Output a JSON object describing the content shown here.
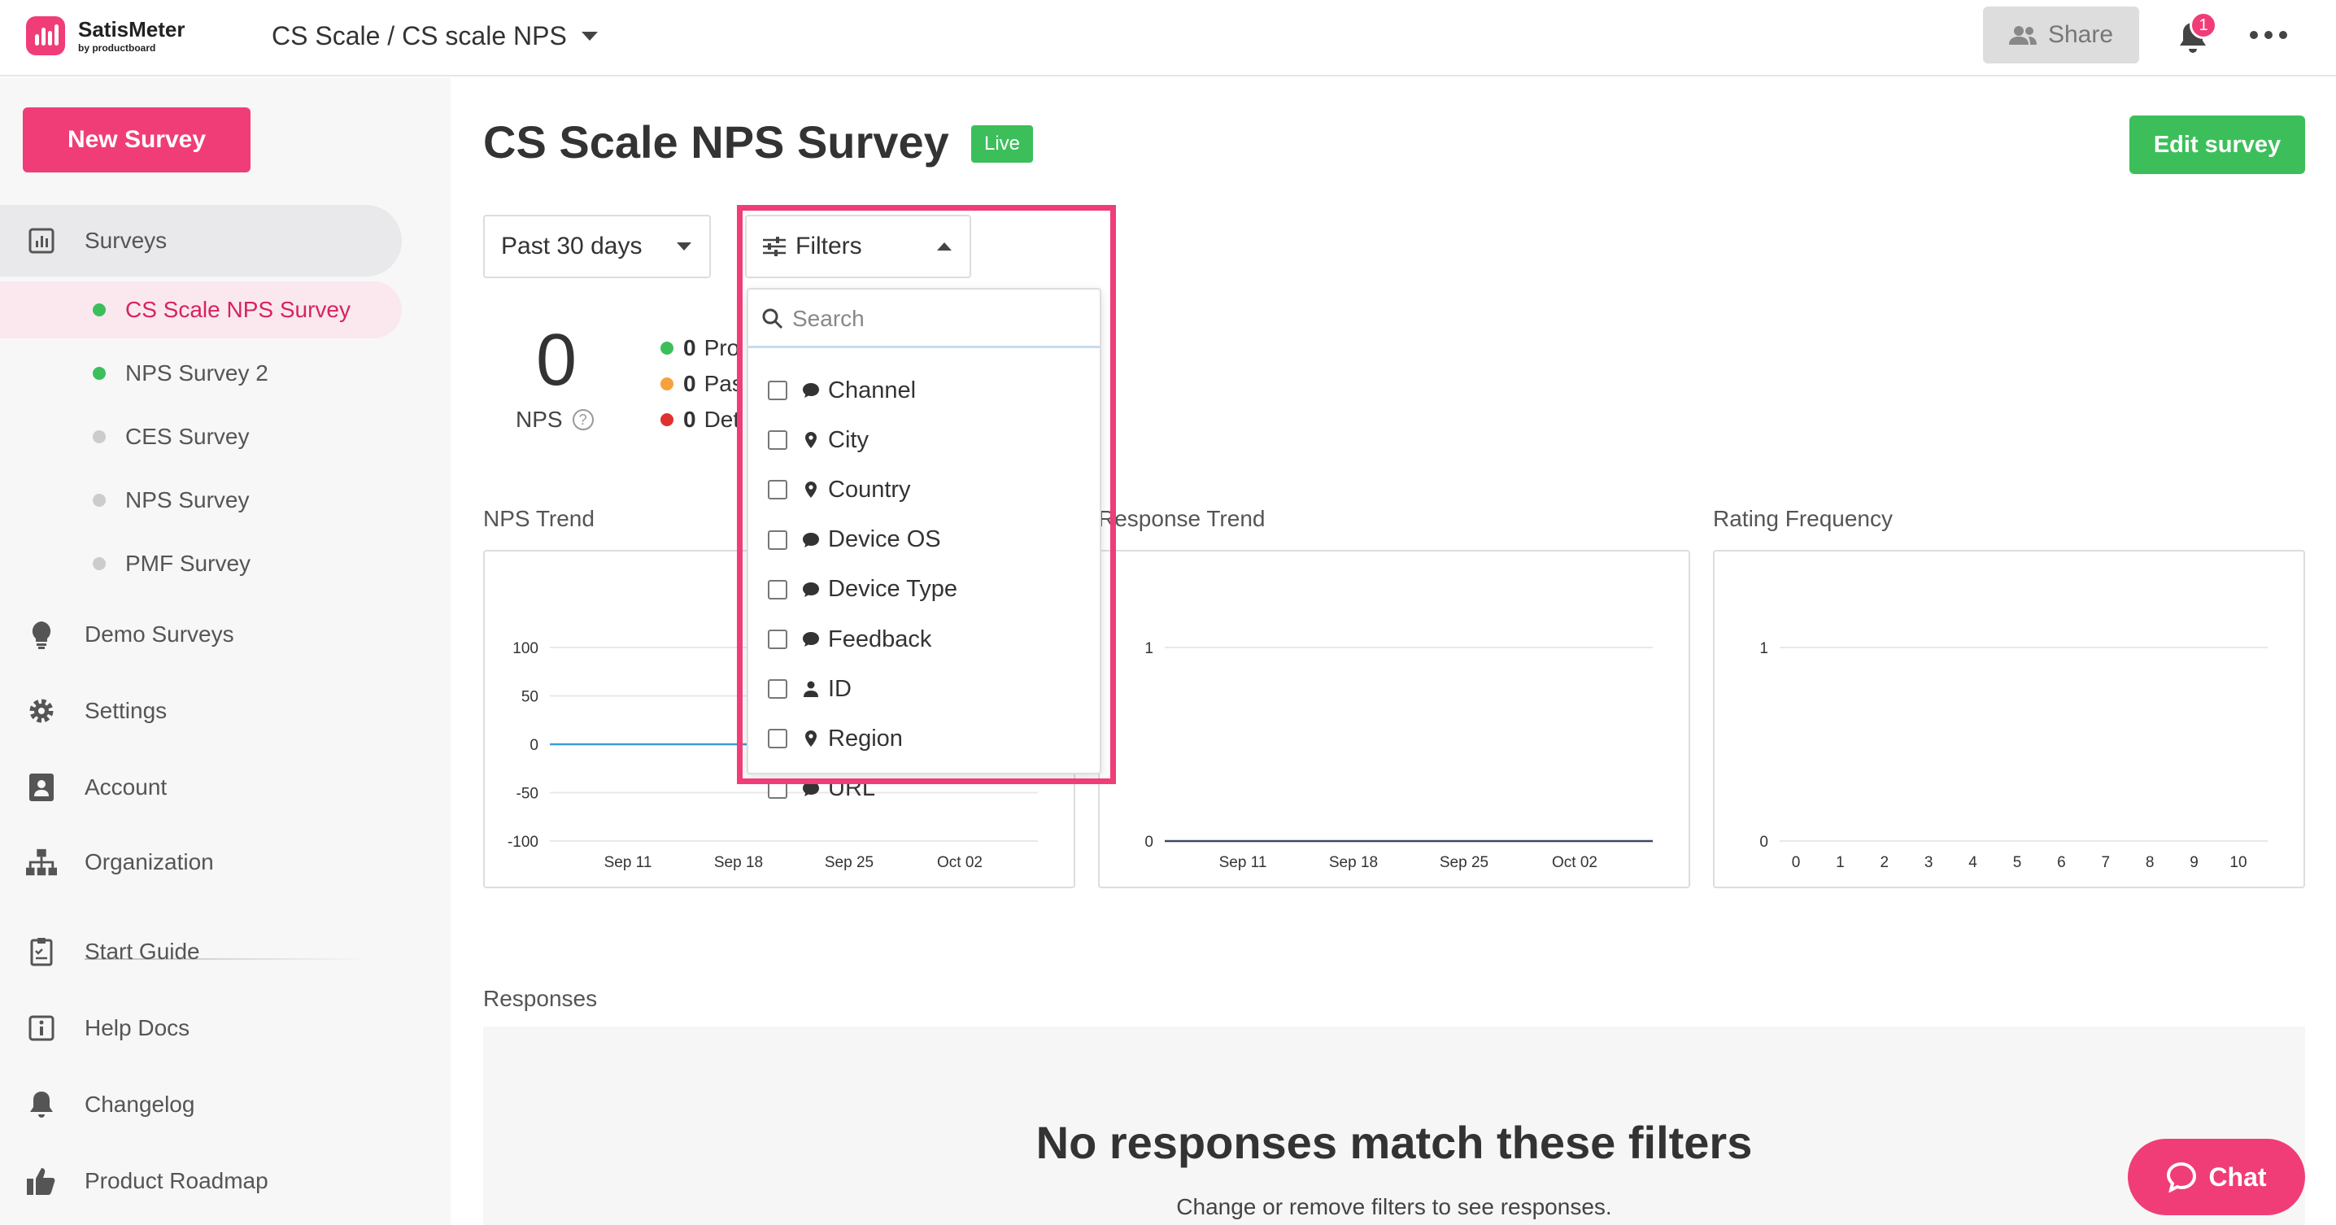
{
  "app": {
    "name": "SatisMeter",
    "sub": "by productboard",
    "accent": "#f03d77",
    "green": "#3cbf5a"
  },
  "breadcrumb": "CS Scale / CS scale NPS",
  "header": {
    "share_label": "Share",
    "notification_count": "1"
  },
  "sidebar": {
    "new_survey_label": "New Survey",
    "surveys_label": "Surveys",
    "survey_items": [
      {
        "label": "CS Scale NPS Survey",
        "status": "live",
        "active": true
      },
      {
        "label": "NPS Survey 2",
        "status": "live"
      },
      {
        "label": "CES Survey",
        "status": "inactive"
      },
      {
        "label": "NPS Survey",
        "status": "inactive"
      },
      {
        "label": "PMF Survey",
        "status": "inactive"
      }
    ],
    "items": [
      {
        "label": "Demo Surveys",
        "icon": "lightbulb-icon"
      },
      {
        "label": "Settings",
        "icon": "gear-icon"
      },
      {
        "label": "Account",
        "icon": "account-icon"
      },
      {
        "label": "Organization",
        "icon": "org-chart-icon"
      },
      {
        "label": "Start Guide",
        "icon": "clipboard-icon"
      },
      {
        "label": "Help Docs",
        "icon": "info-icon"
      },
      {
        "label": "Changelog",
        "icon": "bell-icon"
      },
      {
        "label": "Product Roadmap",
        "icon": "thumbs-up-icon"
      }
    ]
  },
  "main": {
    "title": "CS Scale NPS Survey",
    "live_label": "Live",
    "edit_label": "Edit survey",
    "period_label": "Past 30 days",
    "filters_label": "Filters",
    "nps_value": "0",
    "nps_label": "NPS",
    "help_glyph": "?",
    "stats": [
      {
        "count": "0",
        "label": "Pro",
        "color": "#3cbf5a"
      },
      {
        "count": "0",
        "label": "Pas",
        "color": "#f5a13c"
      },
      {
        "count": "0",
        "label": "Det",
        "color": "#e03131"
      }
    ],
    "cards": [
      {
        "title": "NPS Trend"
      },
      {
        "title": "Response Trend"
      },
      {
        "title": "Rating Frequency"
      }
    ],
    "responses_title": "Responses",
    "empty_title": "No responses match these filters",
    "empty_sub": "Change or remove filters to see responses.",
    "chat_label": "Chat"
  },
  "dropdown": {
    "search_placeholder": "Search",
    "items": [
      {
        "label": "Channel",
        "icon": "speech-bubble-icon"
      },
      {
        "label": "City",
        "icon": "location-pin-icon"
      },
      {
        "label": "Country",
        "icon": "location-pin-icon"
      },
      {
        "label": "Device OS",
        "icon": "speech-bubble-icon"
      },
      {
        "label": "Device Type",
        "icon": "speech-bubble-icon"
      },
      {
        "label": "Feedback",
        "icon": "speech-bubble-icon"
      },
      {
        "label": "ID",
        "icon": "person-icon"
      },
      {
        "label": "Region",
        "icon": "location-pin-icon"
      },
      {
        "label": "URL",
        "icon": "speech-bubble-icon"
      }
    ]
  },
  "chart_data": [
    {
      "type": "line",
      "title": "NPS Trend",
      "categories": [
        "Sep 11",
        "Sep 18",
        "Sep 25",
        "Oct 02"
      ],
      "y_ticks": [
        "100",
        "50",
        "0",
        "-50",
        "-100"
      ],
      "ylim": [
        -100,
        100
      ],
      "series": [
        {
          "values": [
            0,
            0,
            0,
            0
          ]
        }
      ],
      "grid": true
    },
    {
      "type": "line",
      "title": "Response Trend",
      "categories": [
        "Sep 11",
        "Sep 18",
        "Sep 25",
        "Oct 02"
      ],
      "y_ticks": [
        "1",
        "0"
      ],
      "ylim": [
        0,
        1
      ],
      "series": [
        {
          "values": [
            0,
            0,
            0,
            0
          ]
        }
      ],
      "grid": true
    },
    {
      "type": "bar",
      "title": "Rating Frequency",
      "categories": [
        "0",
        "1",
        "2",
        "3",
        "4",
        "5",
        "6",
        "7",
        "8",
        "9",
        "10"
      ],
      "y_ticks": [
        "1",
        "0"
      ],
      "ylim": [
        0,
        1
      ],
      "values": [
        0,
        0,
        0,
        0,
        0,
        0,
        0,
        0,
        0,
        0,
        0
      ],
      "grid": true
    }
  ]
}
